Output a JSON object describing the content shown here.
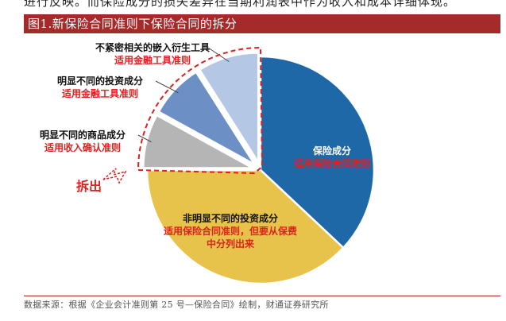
{
  "header": {
    "top_text": "进行反映。而保险成分的损失差异在当期利润表中作为收入和成本详细体现。",
    "figure_title": "图1.新保险合同准则下保险合同的拆分",
    "source": "数据来源：根据《企业会计准则第 25 号—保险合同》绘制，财通证券研究所"
  },
  "chart_data": {
    "type": "pie",
    "title": "图1.新保险合同准则下保险合同的拆分",
    "slices": [
      {
        "label": "保险成分",
        "sublabel": "适用保险合同准则",
        "value": 37,
        "color": "#1f68a8",
        "exploded": false
      },
      {
        "label": "非明显不同的投资成分",
        "sublabel": "适用保险合同准则，但要从保费中分列出来",
        "value": 38,
        "color": "#e8c34b",
        "exploded": false
      },
      {
        "label": "明显不同的商品成分",
        "sublabel": "适用收入确认准则",
        "value": 8,
        "color": "#b5b5b5",
        "exploded": true
      },
      {
        "label": "明显不同的投资成分",
        "sublabel": "适用金融工具准则",
        "value": 8,
        "color": "#6c8fc6",
        "exploded": true
      },
      {
        "label": "不紧密相关的嵌入衍生工具",
        "sublabel": "适用金融工具准则",
        "value": 9,
        "color": "#b4c8e6",
        "exploded": true
      }
    ],
    "annotations": {
      "split_label": "拆出"
    },
    "colors": {
      "title_bg": "#a52a2a",
      "annotation": "#e02020"
    }
  }
}
